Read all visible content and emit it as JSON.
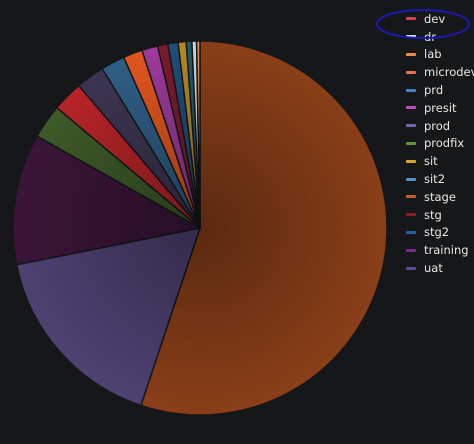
{
  "chart_data": {
    "type": "pie",
    "title": "",
    "legend_position": "right",
    "slices": [
      {
        "label": "stage",
        "value": 56.0,
        "color": "#8a3f18"
      },
      {
        "label": "prod",
        "value": 17.0,
        "color": "#4e4272"
      },
      {
        "label": "training",
        "value": 11.5,
        "color": "#3b1538"
      },
      {
        "label": "prodfix",
        "value": 3.0,
        "color": "#3d5a28"
      },
      {
        "label": "dev",
        "value": 2.7,
        "color": "#b72428"
      },
      {
        "label": "uat",
        "value": 2.5,
        "color": "#3c3552"
      },
      {
        "label": "prd",
        "value": 2.1,
        "color": "#2f5e86"
      },
      {
        "label": "microdev",
        "value": 1.7,
        "color": "#e2561e"
      },
      {
        "label": "presit",
        "value": 1.4,
        "color": "#9c3a9c"
      },
      {
        "label": "stg",
        "value": 0.9,
        "color": "#7a1c2c"
      },
      {
        "label": "stg2",
        "value": 0.9,
        "color": "#1f4e7a"
      },
      {
        "label": "sit",
        "value": 0.7,
        "color": "#b5881e"
      },
      {
        "label": "sit2",
        "value": 0.5,
        "color": "#1f5a6e"
      },
      {
        "label": "dr",
        "value": 0.4,
        "color": "#c8dde0"
      },
      {
        "label": "lab",
        "value": 0.3,
        "color": "#e58a4a"
      }
    ],
    "legend_order": [
      "dev",
      "dr",
      "lab",
      "microdev",
      "prd",
      "presit",
      "prod",
      "prodfix",
      "sit",
      "sit2",
      "stage",
      "stg",
      "stg2",
      "training",
      "uat"
    ],
    "legend_colors": {
      "dev": "#d44a4a",
      "dr": "#d8e6f2",
      "lab": "#f2884a",
      "microdev": "#e8705a",
      "prd": "#3f86c8",
      "presit": "#c24cc2",
      "prod": "#7766b8",
      "prodfix": "#5c9a3c",
      "sit": "#d6a728",
      "sit2": "#4f94c8",
      "stage": "#c46024",
      "stg": "#8c1c2c",
      "stg2": "#2860a8",
      "training": "#7c2a8c",
      "uat": "#5c4e94"
    }
  },
  "annotation": {
    "color": "#1e18b0",
    "target": "dev"
  }
}
